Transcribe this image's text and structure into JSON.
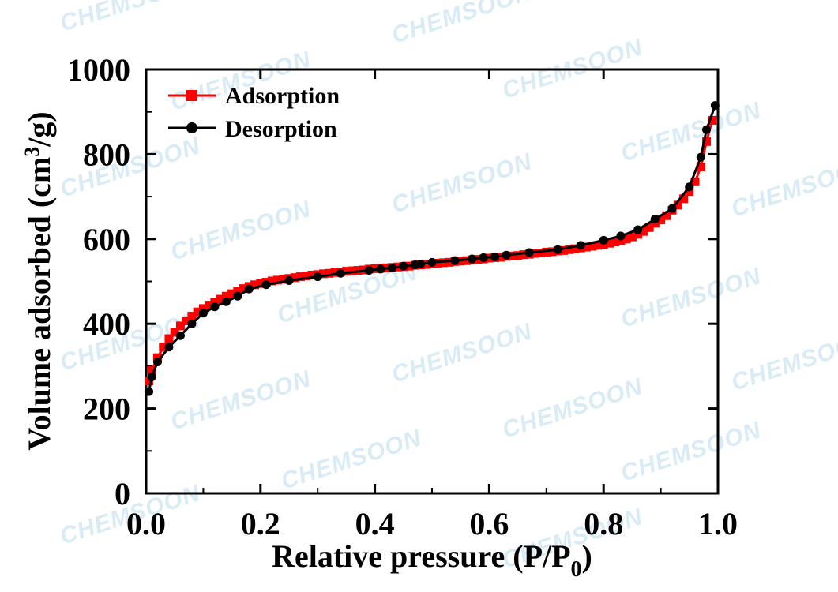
{
  "watermark": "CHEMSOON",
  "chart_data": {
    "type": "line",
    "title": "",
    "xlabel": "Relative pressure  (P/P",
    "xlabel_sub": "0",
    "xlabel_close": ")",
    "ylabel_pre": "Volume adsorbed (cm",
    "ylabel_sup": "3",
    "ylabel_post": "/g)",
    "xlim": [
      0.0,
      1.0
    ],
    "ylim": [
      0,
      1000
    ],
    "xticks": [
      "0.0",
      "0.2",
      "0.4",
      "0.6",
      "0.8",
      "1.0"
    ],
    "yticks": [
      "0",
      "200",
      "400",
      "600",
      "800",
      "1000"
    ],
    "legend_position": "top-left",
    "series": [
      {
        "name": "Adsorption",
        "color": "#ff0000",
        "marker": "square",
        "x": [
          0.005,
          0.01,
          0.02,
          0.03,
          0.04,
          0.05,
          0.06,
          0.07,
          0.08,
          0.09,
          0.1,
          0.11,
          0.12,
          0.13,
          0.14,
          0.15,
          0.16,
          0.17,
          0.18,
          0.19,
          0.2,
          0.21,
          0.22,
          0.23,
          0.24,
          0.25,
          0.26,
          0.27,
          0.28,
          0.29,
          0.3,
          0.31,
          0.32,
          0.33,
          0.34,
          0.35,
          0.36,
          0.37,
          0.38,
          0.39,
          0.4,
          0.41,
          0.42,
          0.43,
          0.44,
          0.45,
          0.46,
          0.47,
          0.48,
          0.49,
          0.5,
          0.51,
          0.52,
          0.53,
          0.54,
          0.55,
          0.56,
          0.57,
          0.58,
          0.59,
          0.6,
          0.61,
          0.62,
          0.63,
          0.64,
          0.65,
          0.66,
          0.67,
          0.68,
          0.69,
          0.7,
          0.71,
          0.72,
          0.73,
          0.74,
          0.75,
          0.76,
          0.77,
          0.78,
          0.79,
          0.8,
          0.81,
          0.82,
          0.83,
          0.84,
          0.85,
          0.86,
          0.87,
          0.88,
          0.89,
          0.9,
          0.91,
          0.92,
          0.93,
          0.94,
          0.95,
          0.96,
          0.97,
          0.98,
          0.99
        ],
        "y": [
          265,
          290,
          320,
          345,
          365,
          380,
          395,
          407,
          418,
          428,
          436,
          444,
          451,
          458,
          465,
          471,
          477,
          483,
          488,
          492,
          495,
          498,
          501,
          503,
          505,
          507,
          509,
          511,
          513,
          515,
          516,
          518,
          519,
          521,
          522,
          524,
          525,
          526,
          527,
          529,
          530,
          531,
          532,
          533,
          534,
          535,
          536,
          538,
          539,
          540,
          541,
          543,
          544,
          545,
          547,
          548,
          549,
          551,
          552,
          553,
          555,
          556,
          557,
          559,
          560,
          561,
          563,
          564,
          566,
          567,
          569,
          570,
          572,
          573,
          575,
          577,
          579,
          581,
          583,
          585,
          587,
          590,
          593,
          596,
          600,
          605,
          611,
          618,
          627,
          637,
          645,
          655,
          668,
          680,
          695,
          712,
          735,
          770,
          830,
          880
        ]
      },
      {
        "name": "Desorption",
        "color": "#000000",
        "marker": "circle",
        "x": [
          0.005,
          0.01,
          0.02,
          0.04,
          0.06,
          0.08,
          0.1,
          0.12,
          0.14,
          0.16,
          0.18,
          0.21,
          0.25,
          0.3,
          0.34,
          0.39,
          0.41,
          0.43,
          0.45,
          0.47,
          0.48,
          0.5,
          0.54,
          0.57,
          0.59,
          0.61,
          0.63,
          0.67,
          0.72,
          0.76,
          0.8,
          0.83,
          0.86,
          0.89,
          0.92,
          0.95,
          0.97,
          0.98,
          0.995
        ],
        "y": [
          240,
          275,
          310,
          345,
          372,
          400,
          425,
          440,
          452,
          465,
          482,
          492,
          502,
          511,
          519,
          526,
          529,
          532,
          536,
          539,
          541,
          545,
          549,
          553,
          556,
          558,
          562,
          568,
          575,
          585,
          597,
          607,
          622,
          647,
          672,
          723,
          793,
          858,
          915
        ]
      }
    ]
  }
}
